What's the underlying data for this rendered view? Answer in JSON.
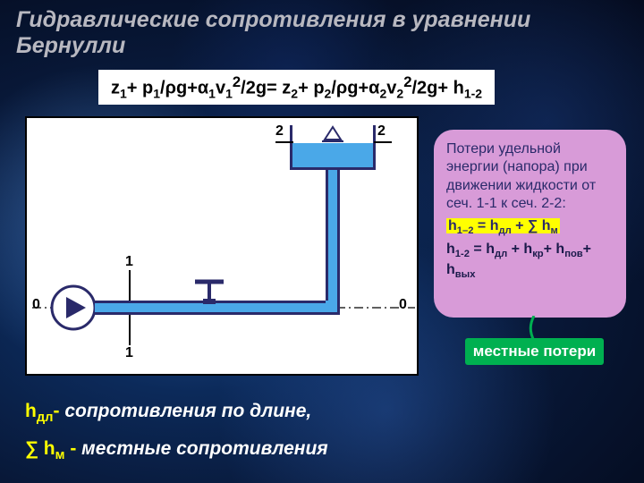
{
  "title": "Гидравлические сопротивления в уравнении Бернулли",
  "equation_html": "z<sub>1</sub>+ p<sub>1</sub>/ρg+α<sub>1</sub>v<sub>1</sub><sup>2</sup>/2g= z<sub>2</sub>+ p<sub>2</sub>/ρg+α<sub>2</sub>v<sub>2</sub><sup>2</sup>/2g+ h<sub>1-2</sub>",
  "diagram": {
    "bg": "#ffffff",
    "border": "#000000",
    "water_fill": "#4aa8e8",
    "outline": "#2a2a6a",
    "labels": {
      "zero_left": "0",
      "zero_right": "0",
      "one_top": "1",
      "one_bottom": "1",
      "two_left": "2",
      "two_right": "2"
    }
  },
  "callout": {
    "bg": "#d89bd8",
    "text_color": "#2a2a6a",
    "line1": "Потери удельной энергии (напора) при движении жидкости от сеч. 1-1 к сеч. 2-2:",
    "formula_hl_html": "h<sub>1–2</sub> = h<sub>дл</sub> + ∑ h<sub>м</sub>",
    "formula2_html": "h<sub>1-2</sub> = h<sub>дл</sub> + h<sub>кр</sub>+ h<sub>пов</sub>+ h<sub>вых</sub>"
  },
  "local_losses": {
    "label": "местные потери",
    "bg": "#00b050",
    "connector": "#00b050"
  },
  "legend": {
    "item1_sym_html": "h<sub>дл</sub>-",
    "item1_txt": "  сопротивления по длине,",
    "item2_sym_html": "∑ h<sub>м</sub> -",
    "item2_txt": "  местные сопротивления"
  },
  "colors": {
    "title": "#b8b8c0",
    "highlight": "#ffff00",
    "white": "#ffffff"
  }
}
